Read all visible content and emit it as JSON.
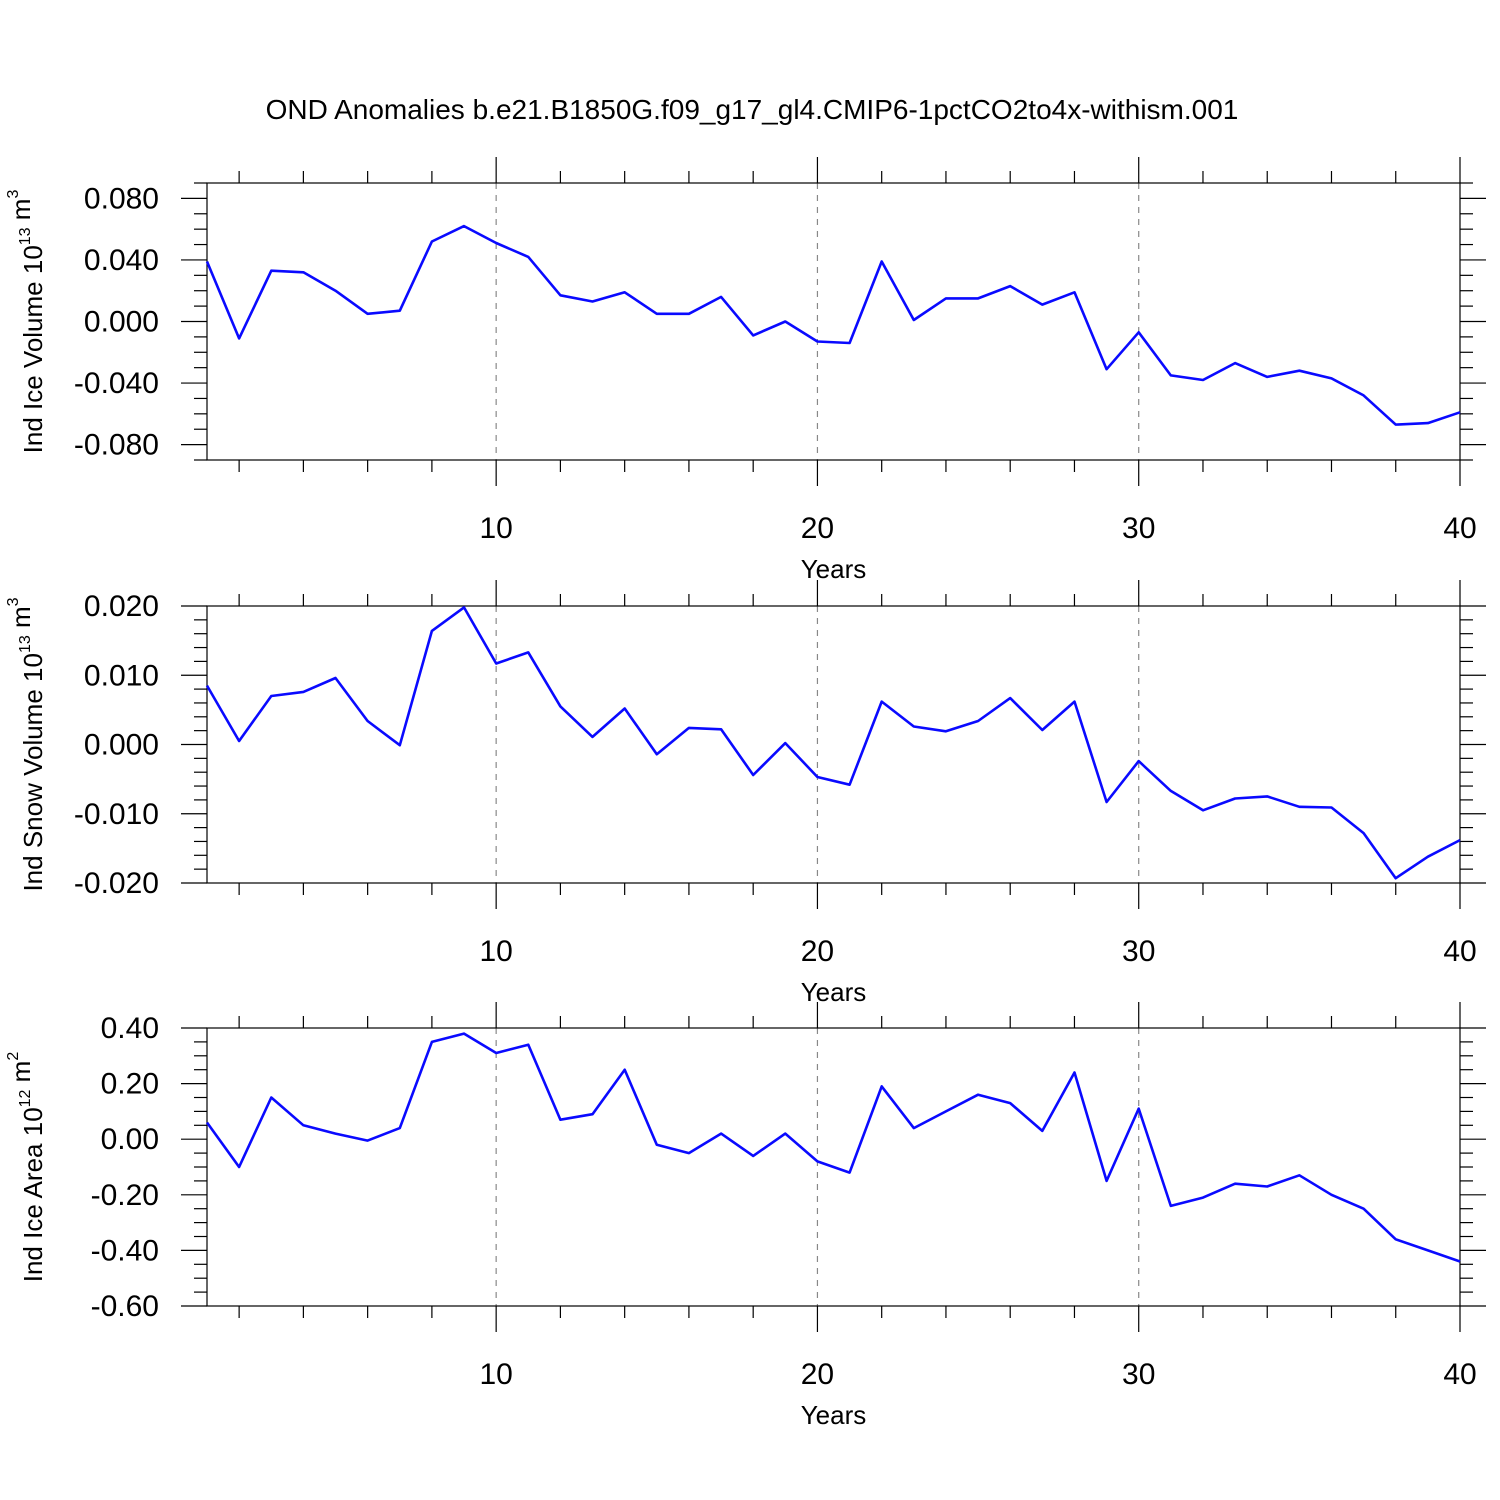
{
  "title": "OND Anomalies b.e21.B1850G.f09_g17_gl4.CMIP6-1pctCO2to4x-withism.001",
  "colors": {
    "line": "#0a0aff",
    "grid": "#888888",
    "frame": "#000000"
  },
  "chart_data": [
    {
      "type": "line",
      "ylabel": {
        "prefix": "Ind Ice Volume 10",
        "exp": "13",
        "unit": " m",
        "unit_exp": "3"
      },
      "xlabel": "Years",
      "xlim": [
        1,
        40
      ],
      "ylim": [
        -0.09,
        0.09
      ],
      "xticks": [
        10,
        20,
        30,
        40
      ],
      "yticks": [
        -0.08,
        -0.04,
        0.0,
        0.04,
        0.08
      ],
      "ytick_labels": [
        "-0.080",
        "-0.040",
        "0.000",
        "0.040",
        "0.080"
      ],
      "yminor_step": 0.01,
      "grid_x": [
        10,
        20,
        30
      ],
      "x": [
        1,
        2,
        3,
        4,
        5,
        6,
        7,
        8,
        9,
        10,
        11,
        12,
        13,
        14,
        15,
        16,
        17,
        18,
        19,
        20,
        21,
        22,
        23,
        24,
        25,
        26,
        27,
        28,
        29,
        30,
        31,
        32,
        33,
        34,
        35,
        36,
        37,
        38,
        39,
        40
      ],
      "series": [
        {
          "values": [
            0.039,
            -0.011,
            0.033,
            0.032,
            0.02,
            0.005,
            0.007,
            0.052,
            0.062,
            0.051,
            0.042,
            0.017,
            0.013,
            0.019,
            0.005,
            0.005,
            0.016,
            -0.009,
            0.0,
            -0.013,
            -0.014,
            0.039,
            0.001,
            0.015,
            0.015,
            0.023,
            0.011,
            0.019,
            -0.031,
            -0.007,
            -0.035,
            -0.038,
            -0.027,
            -0.036,
            -0.032,
            -0.037,
            -0.048,
            -0.067,
            -0.066,
            -0.059
          ]
        }
      ]
    },
    {
      "type": "line",
      "ylabel": {
        "prefix": "Ind Snow Volume 10",
        "exp": "13",
        "unit": " m",
        "unit_exp": "3"
      },
      "xlabel": "Years",
      "xlim": [
        1,
        40
      ],
      "ylim": [
        -0.02,
        0.02
      ],
      "xticks": [
        10,
        20,
        30,
        40
      ],
      "yticks": [
        -0.02,
        -0.01,
        0.0,
        0.01,
        0.02
      ],
      "ytick_labels": [
        "-0.020",
        "-0.010",
        "0.000",
        "0.010",
        "0.020"
      ],
      "yminor_step": 0.002,
      "grid_x": [
        10,
        20,
        30
      ],
      "x": [
        1,
        2,
        3,
        4,
        5,
        6,
        7,
        8,
        9,
        10,
        11,
        12,
        13,
        14,
        15,
        16,
        17,
        18,
        19,
        20,
        21,
        22,
        23,
        24,
        25,
        26,
        27,
        28,
        29,
        30,
        31,
        32,
        33,
        34,
        35,
        36,
        37,
        38,
        39,
        40
      ],
      "series": [
        {
          "values": [
            0.0085,
            0.0005,
            0.007,
            0.0076,
            0.0096,
            0.0034,
            -0.0001,
            0.0164,
            0.0198,
            0.0117,
            0.0133,
            0.0055,
            0.0011,
            0.0052,
            -0.0014,
            0.0024,
            0.0022,
            -0.0044,
            0.0002,
            -0.0047,
            -0.0058,
            0.0062,
            0.0026,
            0.0019,
            0.0034,
            0.0067,
            0.0021,
            0.0062,
            -0.0083,
            -0.0024,
            -0.0067,
            -0.0095,
            -0.0078,
            -0.0075,
            -0.009,
            -0.0091,
            -0.0128,
            -0.0193,
            -0.0162,
            -0.0138
          ]
        }
      ]
    },
    {
      "type": "line",
      "ylabel": {
        "prefix": "Ind Ice Area 10",
        "exp": "12",
        "unit": " m",
        "unit_exp": "2"
      },
      "xlabel": "Years",
      "xlim": [
        1,
        40
      ],
      "ylim": [
        -0.6,
        0.4
      ],
      "xticks": [
        10,
        20,
        30,
        40
      ],
      "yticks": [
        -0.6,
        -0.4,
        -0.2,
        0.0,
        0.2,
        0.4
      ],
      "ytick_labels": [
        "-0.60",
        "-0.40",
        "-0.20",
        "0.00",
        "0.20",
        "0.40"
      ],
      "yminor_step": 0.05,
      "grid_x": [
        10,
        20,
        30
      ],
      "x": [
        1,
        2,
        3,
        4,
        5,
        6,
        7,
        8,
        9,
        10,
        11,
        12,
        13,
        14,
        15,
        16,
        17,
        18,
        19,
        20,
        21,
        22,
        23,
        24,
        25,
        26,
        27,
        28,
        29,
        30,
        31,
        32,
        33,
        34,
        35,
        36,
        37,
        38,
        39,
        40
      ],
      "series": [
        {
          "values": [
            0.06,
            -0.1,
            0.15,
            0.05,
            0.02,
            -0.005,
            0.04,
            0.35,
            0.38,
            0.31,
            0.34,
            0.07,
            0.09,
            0.25,
            -0.02,
            -0.05,
            0.02,
            -0.06,
            0.02,
            -0.08,
            -0.12,
            0.19,
            0.04,
            0.1,
            0.16,
            0.13,
            0.03,
            0.24,
            -0.15,
            0.11,
            -0.24,
            -0.21,
            -0.16,
            -0.17,
            -0.13,
            -0.2,
            -0.25,
            -0.36,
            -0.4,
            -0.44
          ]
        }
      ]
    }
  ]
}
